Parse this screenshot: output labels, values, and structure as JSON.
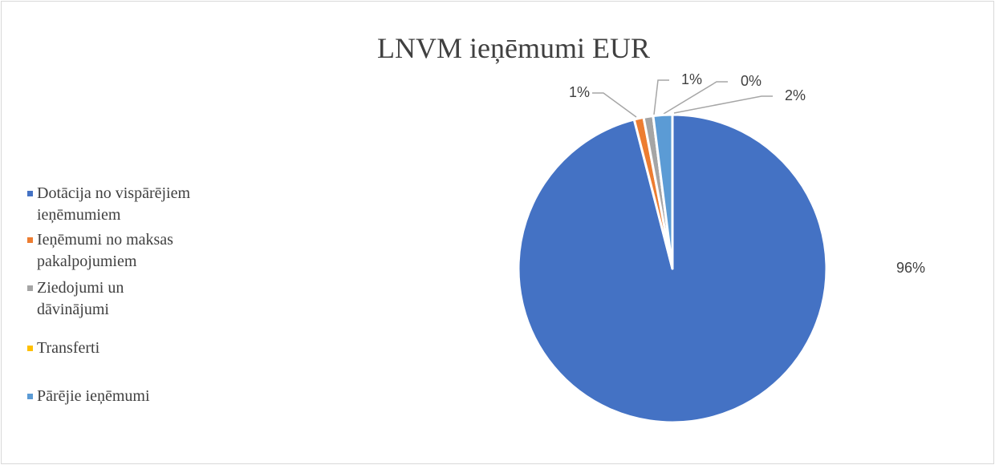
{
  "chart_data": {
    "type": "pie",
    "title": "LNVM ieņēmumi EUR",
    "categories": [
      "Dotācija no vispārējiem ieņēmumiem",
      "Ieņēmumi no maksas pakalpojumiem",
      "Ziedojumi un dāvinājumi",
      "Transferti",
      "Pārējie ieņēmumi"
    ],
    "values": [
      96,
      1,
      1,
      0,
      2
    ],
    "colors": [
      "#4472c4",
      "#ed7d31",
      "#a5a5a5",
      "#ffc000",
      "#5b9bd5"
    ],
    "legend": "left"
  }
}
